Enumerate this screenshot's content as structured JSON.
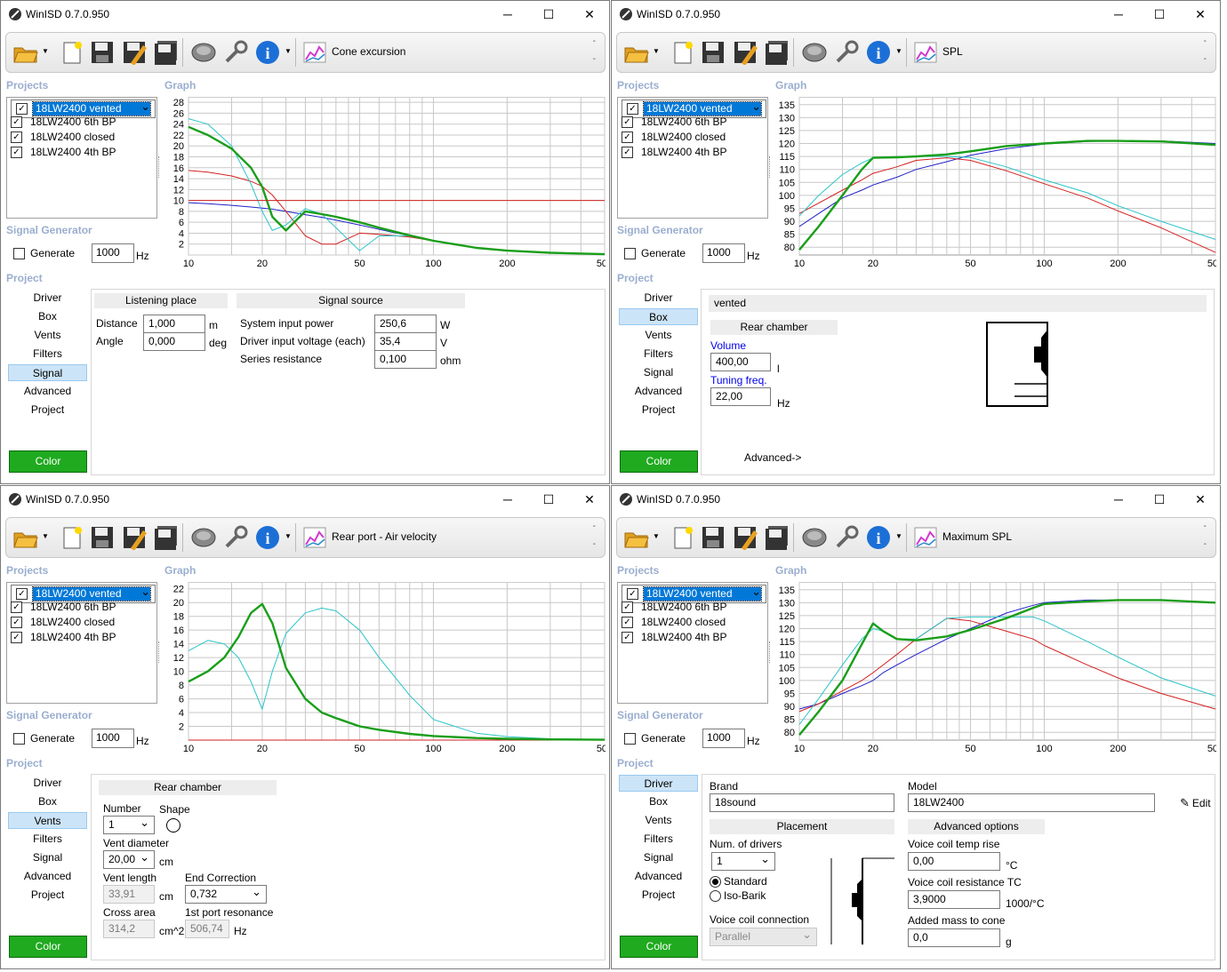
{
  "app_title": "WinISD 0.7.0.950",
  "window_controls": {
    "minimize": "─",
    "maximize": "☐",
    "close": "✕"
  },
  "sections": {
    "projects": "Projects",
    "graph": "Graph",
    "signal_generator": "Signal Generator",
    "project": "Project"
  },
  "projects": [
    {
      "name": "18LW2400 vented",
      "checked": true,
      "selected": true
    },
    {
      "name": "18LW2400 6th BP",
      "checked": true,
      "selected": false
    },
    {
      "name": "18LW2400 closed",
      "checked": true,
      "selected": false
    },
    {
      "name": "18LW2400 4th BP",
      "checked": true,
      "selected": false
    }
  ],
  "generate_label": "Generate",
  "generate_freq": "1000",
  "hz": "Hz",
  "nav_items": [
    "Driver",
    "Box",
    "Vents",
    "Filters",
    "Signal",
    "Advanced",
    "Project"
  ],
  "color_button": "Color",
  "tb_dash": "-",
  "series_colors": {
    "vented": "#1a9e1a",
    "bp6": "#2cc4c8",
    "closed": "#d42020",
    "bp4": "#2020c8"
  },
  "windows": [
    {
      "graph_title": "Cone excursion",
      "active_nav": "Signal",
      "chart_data": {
        "type": "line",
        "title": "Cone excursion",
        "xlim": [
          10,
          500
        ],
        "ylim": [
          0,
          29
        ],
        "log_x": true,
        "x_ticks": [
          "10",
          "20",
          "50",
          "100",
          "200",
          "500"
        ],
        "y_ticks": [
          "2",
          "4",
          "6",
          "8",
          "10",
          "12",
          "14",
          "16",
          "18",
          "20",
          "22",
          "24",
          "26",
          "28"
        ],
        "x": [
          10,
          12,
          15,
          18,
          20,
          22,
          25,
          30,
          35,
          40,
          50,
          60,
          80,
          100,
          150,
          200,
          300,
          500
        ],
        "series": [
          {
            "name": "18LW2400 vented",
            "values": [
              23.5,
              22,
              19.5,
              16,
              12.5,
              7,
              4.5,
              8,
              7.5,
              7,
              6,
              5,
              3.6,
              2.6,
              1.3,
              0.8,
              0.4,
              0.15
            ]
          },
          {
            "name": "18LW2400 6th BP",
            "values": [
              25,
              24,
              20,
              13,
              8,
              4.5,
              5.5,
              8.5,
              7.5,
              5,
              0.8,
              3.5,
              3.5,
              2.6,
              1.3,
              0.8,
              0.4,
              0.15
            ]
          },
          {
            "name": "18LW2400 closed",
            "values": [
              15.5,
              15.2,
              14.5,
              13.5,
              12.6,
              11,
              8,
              3.5,
              2,
              2,
              4,
              3.8,
              3.3,
              2.6,
              1.3,
              0.8,
              0.4,
              0.15
            ]
          },
          {
            "name": "18LW2400 4th BP",
            "values": [
              9.6,
              9.4,
              9.1,
              8.8,
              8.6,
              8.4,
              8,
              7.4,
              6.9,
              6.4,
              5.5,
              4.7,
              3.5,
              2.6,
              1.3,
              0.8,
              0.4,
              0.15
            ]
          },
          {
            "name": "limit",
            "values": [
              10,
              10,
              10,
              10,
              10,
              10,
              10,
              10,
              10,
              10,
              10,
              10,
              10,
              10,
              10,
              10,
              10,
              10
            ]
          }
        ]
      }
    },
    {
      "graph_title": "SPL",
      "active_nav": "Box",
      "chart_data": {
        "type": "line",
        "title": "SPL",
        "xlim": [
          10,
          500
        ],
        "ylim": [
          77,
          138
        ],
        "log_x": true,
        "x_ticks": [
          "10",
          "20",
          "50",
          "100",
          "200",
          "500"
        ],
        "y_ticks": [
          "80",
          "85",
          "90",
          "95",
          "100",
          "105",
          "110",
          "115",
          "120",
          "125",
          "130",
          "135"
        ],
        "x": [
          10,
          12,
          15,
          18,
          20,
          25,
          30,
          40,
          50,
          70,
          100,
          150,
          200,
          300,
          500
        ],
        "series": [
          {
            "name": "18LW2400 vented",
            "values": [
              79,
              88,
              100,
              110,
              114.5,
              114.7,
              115,
              115.8,
              117,
              119,
              120,
              121,
              121,
              120.8,
              119.5
            ]
          },
          {
            "name": "18LW2400 6th BP",
            "values": [
              92,
              100,
              108,
              112.5,
              114.5,
              115,
              115,
              115,
              114.6,
              111,
              106,
              101,
              96,
              90,
              83
            ]
          },
          {
            "name": "18LW2400 closed",
            "values": [
              93,
              97,
              102,
              106,
              108.5,
              111,
              113.5,
              114.5,
              113.5,
              109.5,
              104.5,
              99,
              94,
              87.5,
              78
            ]
          },
          {
            "name": "18LW2400 4th BP",
            "values": [
              88,
              93,
              99,
              102,
              104,
              107,
              110,
              113,
              115.5,
              118,
              119.8,
              120.8,
              121,
              121,
              120
            ]
          }
        ]
      },
      "box": {
        "type": "vented",
        "rear_chamber": "Rear chamber",
        "volume_label": "Volume",
        "volume": "400,00",
        "volume_unit": "l",
        "tuning_label": "Tuning freq.",
        "tuning": "22,00",
        "tuning_unit": "Hz",
        "advanced": "Advanced->"
      }
    },
    {
      "graph_title": "Rear port - Air velocity",
      "active_nav": "Vents",
      "chart_data": {
        "type": "line",
        "title": "Rear port - Air velocity",
        "xlim": [
          10,
          500
        ],
        "ylim": [
          0,
          23
        ],
        "log_x": true,
        "x_ticks": [
          "10",
          "20",
          "50",
          "100",
          "200",
          "500"
        ],
        "y_ticks": [
          "2",
          "4",
          "6",
          "8",
          "10",
          "12",
          "14",
          "16",
          "18",
          "20",
          "22"
        ],
        "x": [
          10,
          12,
          14,
          16,
          18,
          20,
          22,
          25,
          30,
          35,
          40,
          50,
          60,
          80,
          100,
          150,
          200,
          300,
          500
        ],
        "series": [
          {
            "name": "18LW2400 vented",
            "values": [
              8.5,
              10,
              12,
              15,
              18.5,
              19.8,
              17,
              10.5,
              6,
              4,
              3.2,
              2,
              1.5,
              0.9,
              0.6,
              0.3,
              0.2,
              0.1,
              0.05
            ]
          },
          {
            "name": "18LW2400 6th BP",
            "values": [
              13,
              14.5,
              14,
              12,
              8.5,
              4.5,
              10,
              15.5,
              18.5,
              19.2,
              18.8,
              16,
              12,
              6.5,
              3,
              1,
              0.5,
              0.2,
              0.1
            ]
          },
          {
            "name": "18LW2400 closed",
            "values": [
              0,
              0,
              0,
              0,
              0,
              0,
              0,
              0,
              0,
              0,
              0,
              0,
              0,
              0,
              0,
              0,
              0,
              0,
              0
            ]
          }
        ]
      },
      "vents": {
        "rear_chamber": "Rear chamber",
        "number_label": "Number",
        "number": "1",
        "shape_label": "Shape",
        "diameter_label": "Vent diameter",
        "diameter": "20,00",
        "diameter_unit": "cm",
        "length_label": "Vent length",
        "length": "33,91",
        "length_unit": "cm",
        "end_corr_label": "End Correction",
        "end_corr": "0,732",
        "area_label": "Cross area",
        "area": "314,2",
        "area_unit": "cm^2",
        "res_label": "1st port resonance",
        "res": "506,74",
        "res_unit": "Hz"
      }
    },
    {
      "graph_title": "Maximum SPL",
      "active_nav": "Driver",
      "chart_data": {
        "type": "line",
        "title": "Maximum SPL",
        "xlim": [
          10,
          500
        ],
        "ylim": [
          77,
          138
        ],
        "log_x": true,
        "x_ticks": [
          "10",
          "20",
          "50",
          "100",
          "200",
          "500"
        ],
        "y_ticks": [
          "80",
          "85",
          "90",
          "95",
          "100",
          "105",
          "110",
          "115",
          "120",
          "125",
          "130",
          "135"
        ],
        "x": [
          10,
          12,
          15,
          18,
          20,
          22,
          25,
          30,
          40,
          50,
          70,
          90,
          100,
          150,
          200,
          300,
          500
        ],
        "series": [
          {
            "name": "18LW2400 vented",
            "values": [
              79,
              88,
              100,
              114,
              122,
              119,
              116,
              115.5,
              117,
              119.5,
              124,
              128,
              129.5,
              130.5,
              131,
              131,
              130
            ]
          },
          {
            "name": "18LW2400 6th BP",
            "values": [
              83,
              93,
              106,
              116,
              120,
              119,
              116,
              116,
              124,
              124.5,
              124.5,
              124.5,
              123,
              115,
              109,
              101,
              94
            ]
          },
          {
            "name": "18LW2400 closed",
            "values": [
              88,
              91,
              96,
              100,
              103,
              106,
              110,
              116,
              124,
              123,
              119,
              116,
              113.5,
              106,
              101,
              95,
              89
            ]
          },
          {
            "name": "18LW2400 4th BP",
            "values": [
              89,
              91,
              95,
              98,
              100,
              103,
              106,
              110,
              116,
              120,
              126,
              129,
              130,
              131,
              131,
              131,
              130
            ]
          }
        ]
      },
      "driver": {
        "brand_label": "Brand",
        "brand": "18sound",
        "model_label": "Model",
        "model": "18LW2400",
        "edit": "Edit",
        "placement": "Placement",
        "num_drivers_label": "Num. of drivers",
        "num_drivers": "1",
        "standard": "Standard",
        "iso_barik": "Iso-Barik",
        "vc_conn_label": "Voice coil connection",
        "vc_conn": "Parallel",
        "adv_options": "Advanced options",
        "vc_temp_label": "Voice coil temp rise",
        "vc_temp": "0,00",
        "vc_temp_unit": "°C",
        "vc_res_label": "Voice coil resistance TC",
        "vc_res": "3,9000",
        "vc_res_unit": "1000/°C",
        "added_mass_label": "Added mass to cone",
        "added_mass": "0,0",
        "added_mass_unit": "g"
      }
    }
  ],
  "signal": {
    "listening_place": "Listening place",
    "distance_label": "Distance",
    "distance": "1,000",
    "distance_unit": "m",
    "angle_label": "Angle",
    "angle": "0,000",
    "angle_unit": "deg",
    "signal_source": "Signal source",
    "power_label": "System input power",
    "power": "250,6",
    "power_unit": "W",
    "voltage_label": "Driver input voltage (each)",
    "voltage": "35,4",
    "voltage_unit": "V",
    "series_label": "Series resistance",
    "series": "0,100",
    "series_unit": "ohm"
  }
}
